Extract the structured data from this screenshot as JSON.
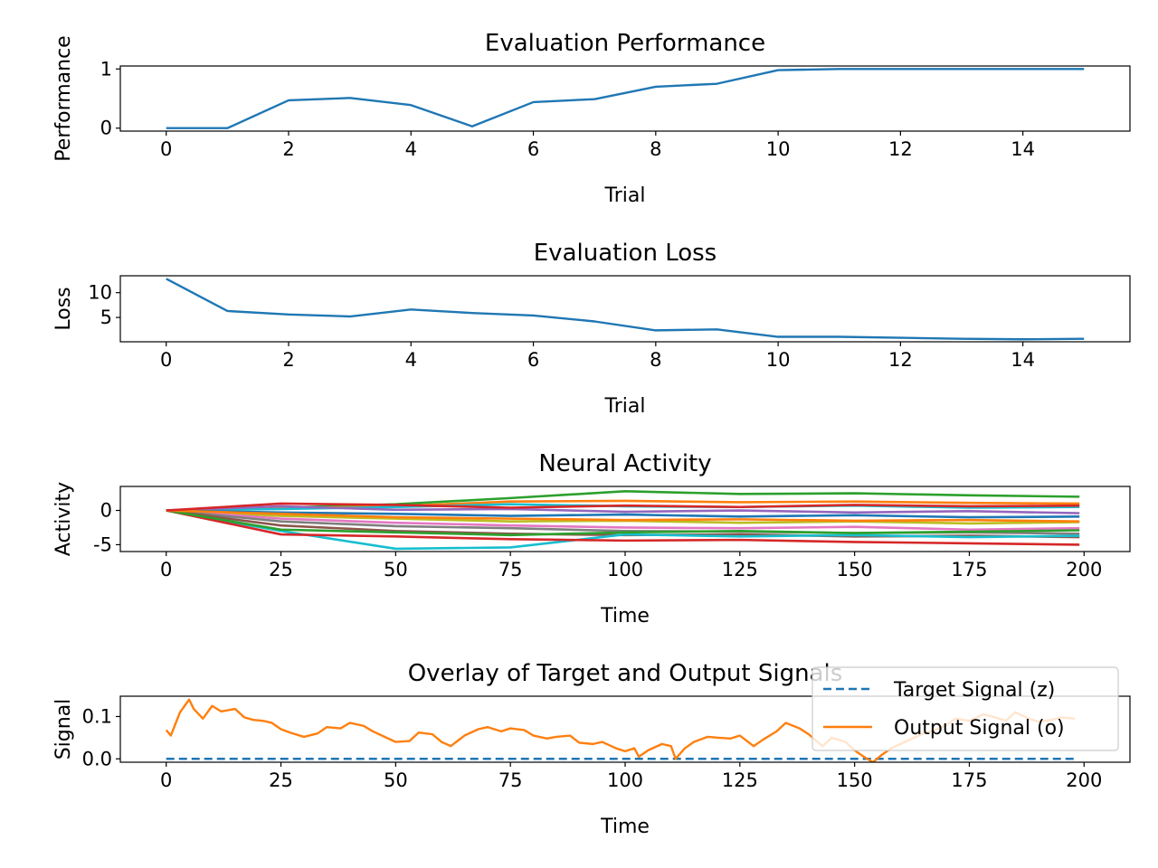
{
  "colors": {
    "blue": "#1f77b4",
    "orange": "#ff7f0e",
    "green": "#2ca02c",
    "red": "#d62728",
    "purple": "#9467bd",
    "brown": "#8c564b",
    "pink": "#e377c2",
    "gray": "#7f7f7f",
    "olive": "#bcbd22",
    "cyan": "#17becf"
  },
  "chart_data": [
    {
      "type": "line",
      "title": "Evaluation Performance",
      "xlabel": "Trial",
      "ylabel": "Performance",
      "xlim": [
        -0.75,
        15.75
      ],
      "ylim": [
        -0.05,
        1.05
      ],
      "xticks": [
        0,
        2,
        4,
        6,
        8,
        10,
        12,
        14
      ],
      "yticks": [
        0,
        1
      ],
      "grid": false,
      "series": [
        {
          "color": "#1f77b4",
          "x": [
            0,
            1,
            2,
            3,
            4,
            5,
            6,
            7,
            8,
            9,
            10,
            11,
            12,
            13,
            14,
            15
          ],
          "y": [
            0.0,
            0.0,
            0.47,
            0.51,
            0.39,
            0.03,
            0.44,
            0.49,
            0.7,
            0.75,
            0.98,
            1.0,
            1.0,
            1.0,
            1.0,
            1.0
          ]
        }
      ]
    },
    {
      "type": "line",
      "title": "Evaluation Loss",
      "xlabel": "Trial",
      "ylabel": "Loss",
      "xlim": [
        -0.75,
        15.75
      ],
      "ylim": [
        0.1,
        13.4
      ],
      "xticks": [
        0,
        2,
        4,
        6,
        8,
        10,
        12,
        14
      ],
      "yticks": [
        5,
        10
      ],
      "grid": false,
      "series": [
        {
          "color": "#1f77b4",
          "x": [
            0,
            1,
            2,
            3,
            4,
            5,
            6,
            7,
            8,
            9,
            10,
            11,
            12,
            13,
            14,
            15
          ],
          "y": [
            12.8,
            6.3,
            5.6,
            5.2,
            6.6,
            5.9,
            5.4,
            4.2,
            2.4,
            2.6,
            1.1,
            1.1,
            0.9,
            0.7,
            0.6,
            0.7
          ]
        }
      ]
    },
    {
      "type": "line",
      "title": "Neural Activity",
      "xlabel": "Time",
      "ylabel": "Activity",
      "xlim": [
        -10,
        210
      ],
      "ylim": [
        -6,
        3.5
      ],
      "xticks": [
        0,
        25,
        50,
        75,
        100,
        125,
        150,
        175,
        200
      ],
      "yticks": [
        -5,
        0
      ],
      "grid": false,
      "series": [
        {
          "color": "#2ca02c",
          "x": [
            0,
            25,
            50,
            75,
            100,
            125,
            150,
            175,
            199
          ],
          "y": [
            0,
            0.4,
            0.9,
            1.8,
            2.8,
            2.4,
            2.5,
            2.2,
            2.0
          ]
        },
        {
          "color": "#ff7f0e",
          "x": [
            0,
            25,
            50,
            75,
            100,
            125,
            150,
            175,
            199
          ],
          "y": [
            0,
            0.3,
            0.6,
            1.3,
            1.4,
            1.2,
            1.3,
            1.1,
            1.0
          ]
        },
        {
          "color": "#17becf",
          "x": [
            0,
            25,
            50,
            75,
            100,
            125,
            150,
            175,
            199
          ],
          "y": [
            0,
            0.2,
            0.5,
            0.9,
            0.6,
            0.5,
            0.7,
            0.4,
            0.5
          ]
        },
        {
          "color": "#9467bd",
          "x": [
            0,
            25,
            50,
            75,
            100,
            125,
            150,
            175,
            199
          ],
          "y": [
            0,
            0.6,
            0.1,
            0.2,
            -0.2,
            0.0,
            -0.3,
            -0.1,
            -0.4
          ]
        },
        {
          "color": "#1f77b4",
          "x": [
            0,
            25,
            50,
            75,
            100,
            125,
            150,
            175,
            199
          ],
          "y": [
            0,
            -0.3,
            -0.5,
            -0.8,
            -0.6,
            -0.9,
            -0.7,
            -1.0,
            -0.9
          ]
        },
        {
          "color": "#bcbd22",
          "x": [
            0,
            25,
            50,
            75,
            100,
            125,
            150,
            175,
            199
          ],
          "y": [
            0,
            -0.8,
            -1.2,
            -1.6,
            -1.5,
            -1.8,
            -1.6,
            -1.9,
            -1.7
          ]
        },
        {
          "color": "#e377c2",
          "x": [
            0,
            25,
            50,
            75,
            100,
            125,
            150,
            175,
            199
          ],
          "y": [
            0,
            -1.2,
            -1.8,
            -2.2,
            -2.5,
            -2.6,
            -2.4,
            -2.8,
            -2.6
          ]
        },
        {
          "color": "#7f7f7f",
          "x": [
            0,
            25,
            50,
            75,
            100,
            125,
            150,
            175,
            199
          ],
          "y": [
            0,
            -1.6,
            -2.3,
            -2.6,
            -3.0,
            -3.1,
            -3.3,
            -3.2,
            -3.4
          ]
        },
        {
          "color": "#8c564b",
          "x": [
            0,
            25,
            50,
            75,
            100,
            125,
            150,
            175,
            199
          ],
          "y": [
            0,
            -2.2,
            -3.0,
            -3.4,
            -3.6,
            -3.5,
            -3.8,
            -3.7,
            -3.9
          ]
        },
        {
          "color": "#17becf",
          "x": [
            0,
            25,
            50,
            75,
            100,
            125,
            150,
            175,
            199
          ],
          "y": [
            0,
            -3.0,
            -5.6,
            -5.4,
            -3.5,
            -3.8,
            -3.6,
            -3.9,
            -3.7
          ]
        },
        {
          "color": "#d62728",
          "x": [
            0,
            25,
            50,
            75,
            100,
            125,
            150,
            175,
            199
          ],
          "y": [
            0,
            -3.5,
            -3.8,
            -4.2,
            -4.4,
            -4.3,
            -4.6,
            -4.8,
            -5.0
          ]
        },
        {
          "color": "#2ca02c",
          "x": [
            0,
            25,
            50,
            75,
            100,
            125,
            150,
            175,
            199
          ],
          "y": [
            0,
            -2.8,
            -3.2,
            -3.6,
            -3.2,
            -3.0,
            -3.3,
            -3.1,
            -2.9
          ]
        },
        {
          "color": "#ff7f0e",
          "x": [
            0,
            25,
            50,
            75,
            100,
            125,
            150,
            175,
            199
          ],
          "y": [
            0,
            -0.5,
            -1.0,
            -1.2,
            -1.4,
            -1.3,
            -1.5,
            -1.4,
            -1.6
          ]
        },
        {
          "color": "#d62728",
          "x": [
            0,
            25,
            50,
            75,
            100,
            125,
            150,
            175,
            199
          ],
          "y": [
            0,
            1.0,
            0.8,
            0.4,
            0.7,
            0.5,
            0.8,
            0.6,
            0.7
          ]
        }
      ]
    },
    {
      "type": "line",
      "title": "Overlay of Target and Output Signals",
      "xlabel": "Time",
      "ylabel": "Signal",
      "xlim": [
        -10,
        210
      ],
      "ylim": [
        -0.008,
        0.148
      ],
      "xticks": [
        0,
        25,
        50,
        75,
        100,
        125,
        150,
        175,
        200
      ],
      "yticks": [
        0.0,
        0.1
      ],
      "grid": false,
      "legend": "upper right",
      "series": [
        {
          "name": "Target Signal (z)",
          "color": "#1f77b4",
          "dash": true,
          "x": [
            0,
            198
          ],
          "y": [
            0.0,
            0.0
          ]
        },
        {
          "name": "Output Signal (o)",
          "color": "#ff7f0e",
          "dash": false,
          "x": [
            0,
            1,
            3,
            5,
            6,
            8,
            10,
            12,
            15,
            17,
            19,
            21,
            23,
            25,
            27,
            30,
            33,
            35,
            38,
            40,
            43,
            45,
            48,
            50,
            53,
            55,
            58,
            60,
            62,
            65,
            68,
            70,
            73,
            75,
            78,
            80,
            83,
            85,
            88,
            90,
            93,
            95,
            98,
            100,
            102,
            103,
            105,
            108,
            110,
            111,
            113,
            115,
            118,
            120,
            123,
            125,
            128,
            130,
            133,
            135,
            138,
            140,
            143,
            145,
            148,
            150,
            152,
            154,
            156,
            158,
            160,
            163,
            165,
            168,
            170,
            172,
            175,
            178,
            180,
            183,
            185,
            188,
            190,
            193,
            195,
            198
          ],
          "y": [
            0.068,
            0.055,
            0.11,
            0.14,
            0.118,
            0.095,
            0.125,
            0.112,
            0.118,
            0.098,
            0.092,
            0.09,
            0.085,
            0.07,
            0.062,
            0.052,
            0.06,
            0.075,
            0.072,
            0.085,
            0.078,
            0.065,
            0.05,
            0.04,
            0.042,
            0.062,
            0.058,
            0.04,
            0.03,
            0.055,
            0.07,
            0.075,
            0.065,
            0.072,
            0.068,
            0.055,
            0.048,
            0.052,
            0.055,
            0.038,
            0.035,
            0.04,
            0.025,
            0.018,
            0.025,
            0.005,
            0.02,
            0.035,
            0.03,
            0.0,
            0.025,
            0.04,
            0.052,
            0.05,
            0.048,
            0.055,
            0.03,
            0.045,
            0.065,
            0.085,
            0.072,
            0.058,
            0.03,
            0.05,
            0.04,
            0.02,
            0.005,
            -0.008,
            0.01,
            0.025,
            0.035,
            0.05,
            0.06,
            0.07,
            0.08,
            0.095,
            0.09,
            0.105,
            0.1,
            0.09,
            0.11,
            0.095,
            0.088,
            0.092,
            0.098,
            0.095
          ]
        }
      ]
    }
  ]
}
